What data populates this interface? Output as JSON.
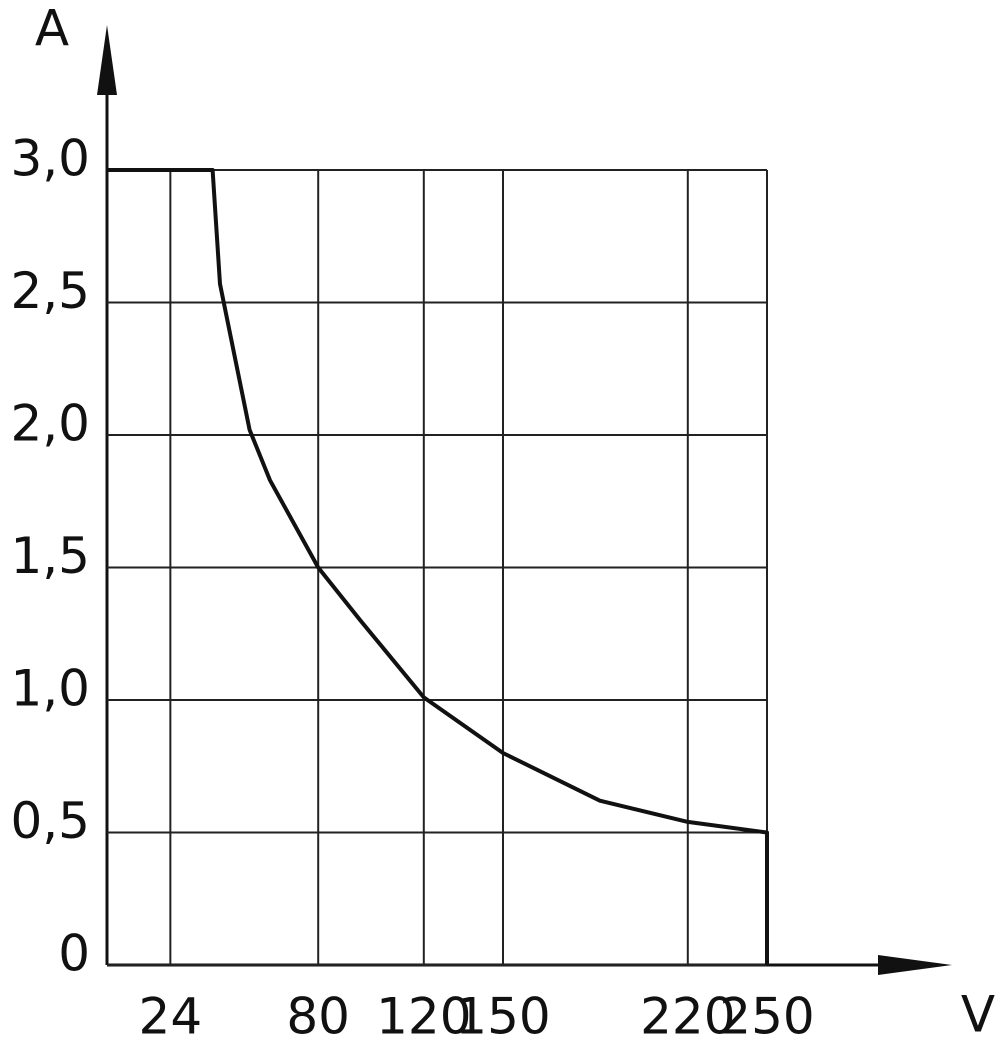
{
  "chart_data": {
    "type": "line",
    "xlabel": "V",
    "ylabel": "A",
    "x": [
      0,
      40,
      42.8,
      54,
      61.7,
      80,
      96,
      120,
      150,
      186.7,
      220,
      250,
      250
    ],
    "series": [
      {
        "color": "#111111",
        "values": [
          3.0,
          3.0,
          2.57,
          2.02,
          1.83,
          1.5,
          1.3,
          1.01,
          0.8,
          0.62,
          0.54,
          0.5,
          0
        ]
      }
    ],
    "xlim": [
      0,
      250
    ],
    "ylim": [
      0,
      3.0
    ],
    "xticks": [
      24,
      80,
      120,
      150,
      220,
      250
    ],
    "yticks": [
      0,
      {
        "value": 0.5,
        "label": "0,5"
      },
      {
        "value": 1.0,
        "label": "1,0"
      },
      {
        "value": 1.5,
        "label": "1,5"
      },
      {
        "value": 2.0,
        "label": "2,0"
      },
      {
        "value": 2.5,
        "label": "2,5"
      },
      {
        "value": 3.0,
        "label": "3,0"
      }
    ],
    "grid": true
  }
}
